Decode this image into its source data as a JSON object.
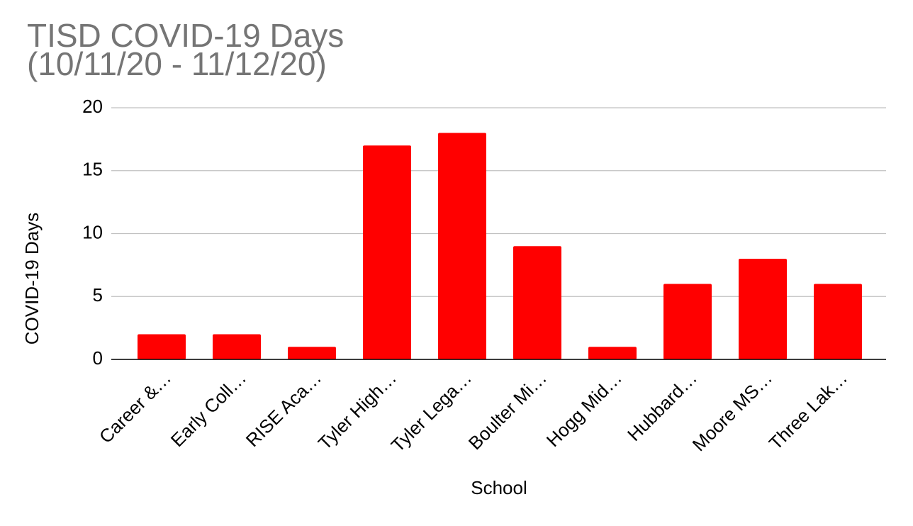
{
  "chart_data": {
    "type": "bar",
    "title": "TISD COVID-19 Days",
    "subtitle": "(10/11/20 - 11/12/20)",
    "x_label": "School",
    "y_label": "COVID-19 Days",
    "categories": [
      "Career &…",
      "Early Coll…",
      "RISE Aca…",
      "Tyler High…",
      "Tyler Lega…",
      "Boulter Mi…",
      "Hogg Mid…",
      "Hubbard…",
      "Moore MS…",
      "Three Lak…"
    ],
    "values": [
      2,
      2,
      1,
      17,
      18,
      9,
      1,
      6,
      8,
      6
    ],
    "color": "#ff0000",
    "ylim": [
      0,
      20
    ],
    "yticks": [
      0,
      5,
      10,
      15,
      20
    ],
    "grid": true
  }
}
